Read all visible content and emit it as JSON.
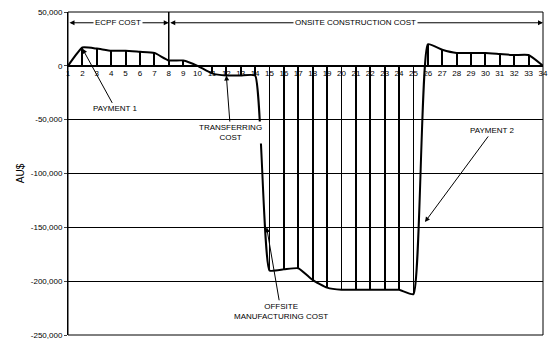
{
  "chart_data": {
    "type": "line",
    "y_label": "AU$",
    "x": [
      1,
      2,
      3,
      4,
      5,
      6,
      7,
      8,
      9,
      10,
      11,
      12,
      13,
      14,
      15,
      16,
      17,
      18,
      19,
      20,
      21,
      22,
      23,
      24,
      25,
      26,
      27,
      28,
      29,
      30,
      31,
      32,
      33,
      34
    ],
    "values": [
      0,
      17000,
      16000,
      14000,
      14000,
      13000,
      12000,
      5000,
      5000,
      0,
      -7000,
      -9000,
      -9000,
      -9000,
      -190000,
      -189000,
      -188000,
      -199000,
      -206000,
      -208000,
      -208000,
      -208000,
      -208000,
      -208000,
      -212000,
      20000,
      15000,
      12000,
      12000,
      12000,
      11000,
      10000,
      10000,
      0
    ],
    "color": "#000000",
    "marker": "stem",
    "xlim": [
      1,
      34
    ],
    "xticks": [
      1,
      2,
      3,
      4,
      5,
      6,
      7,
      8,
      9,
      10,
      11,
      12,
      13,
      14,
      15,
      16,
      17,
      18,
      19,
      20,
      21,
      22,
      23,
      24,
      25,
      26,
      27,
      28,
      29,
      30,
      31,
      32,
      33,
      34
    ],
    "ylim": [
      -250000,
      50000
    ],
    "yticks": [
      {
        "value": -250000,
        "label": "-250,000"
      },
      {
        "value": -200000,
        "label": "-200,000"
      },
      {
        "value": -150000,
        "label": "-150,000"
      },
      {
        "value": -100000,
        "label": "-100,000"
      },
      {
        "value": -50000,
        "label": "-50,000"
      },
      0,
      {
        "value": 50000,
        "label": "50,000"
      }
    ],
    "grid": true,
    "phases": [
      {
        "label": "ECPF COST",
        "start": 1,
        "end": 8
      },
      {
        "label": "ONSITE CONSTRUCTION COST",
        "start": 8,
        "end": 34
      }
    ],
    "annotations": [
      {
        "lines": [
          "PAYMENT 1"
        ]
      },
      {
        "lines": [
          "TRANSFERRING",
          "COST"
        ]
      },
      {
        "lines": [
          "PAYMENT 2"
        ]
      },
      {
        "lines": [
          "OFFSITE",
          "MANUFACTURING COST"
        ]
      }
    ]
  }
}
